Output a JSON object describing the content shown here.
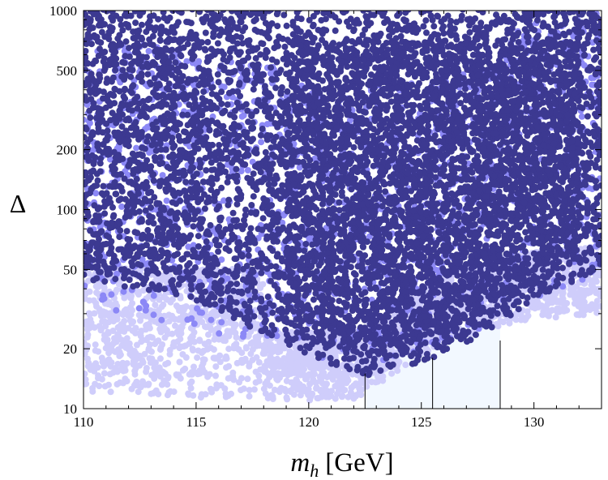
{
  "chart_data": {
    "type": "scatter",
    "title": "",
    "xlabel_var": "m",
    "xlabel_sub": "h",
    "xlabel_unit": "[GeV]",
    "ylabel": "Δ",
    "xlim": [
      110,
      133
    ],
    "ylim": [
      10,
      1000
    ],
    "yscale": "log",
    "x_ticks": [
      110,
      115,
      120,
      125,
      130
    ],
    "x_tick_labels": [
      "110",
      "115",
      "120",
      "125",
      "130"
    ],
    "y_ticks": [
      10,
      20,
      50,
      100,
      200,
      500,
      1000
    ],
    "y_tick_labels": [
      "10",
      "20",
      "50",
      "100",
      "200",
      "500",
      "1000"
    ],
    "higgs_band": {
      "x_min": 122.5,
      "x_center": 125.5,
      "x_max": 128.5,
      "fill_color": "#f2f8ff",
      "line_color": "#000000"
    },
    "series": [
      {
        "name": "excluded-light",
        "color": "#cfcdfb",
        "description_region": "low m_h, low fine-tuning",
        "envelope": {
          "x_range": [
            110,
            133
          ],
          "y_min_at_x": [
            [
              110,
              12
            ],
            [
              118,
              11
            ],
            [
              122,
              11
            ],
            [
              126,
              22
            ],
            [
              130,
              28
            ],
            [
              133,
              30
            ]
          ]
        }
      },
      {
        "name": "intermediate",
        "color": "#8c88f6",
        "description_region": "edge of allowed region",
        "envelope": {
          "x_range": [
            110,
            133
          ],
          "y_min_at_x": [
            [
              110,
              30
            ],
            [
              118,
              22
            ],
            [
              122,
              16
            ],
            [
              126,
              20
            ],
            [
              130,
              35
            ],
            [
              133,
              40
            ]
          ]
        }
      },
      {
        "name": "allowed-dark",
        "color": "#3c3991",
        "description_region": "bulk of allowed points",
        "envelope": {
          "x_range": [
            110,
            133
          ],
          "y_min_at_x": [
            [
              110,
              45
            ],
            [
              115,
              35
            ],
            [
              120,
              18
            ],
            [
              122.5,
              14.5
            ],
            [
              125,
              17
            ],
            [
              128,
              24
            ],
            [
              130,
              35
            ],
            [
              133,
              50
            ]
          ]
        }
      }
    ],
    "colors": {
      "light": "#cfcdfb",
      "mid": "#8c88f6",
      "dark": "#3c3991",
      "band": "#f2f8ff"
    }
  }
}
